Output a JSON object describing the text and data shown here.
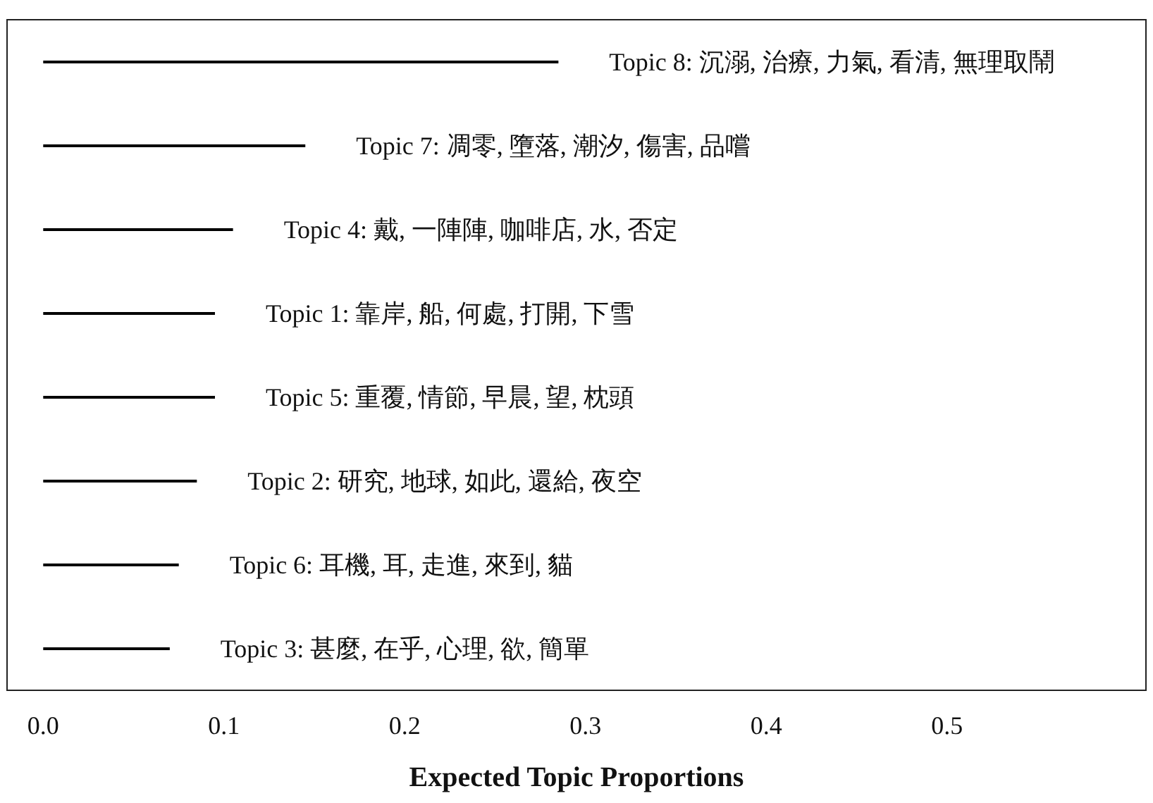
{
  "chart_data": {
    "type": "bar",
    "orientation": "horizontal",
    "categories": [
      "Topic 8: 沉溺, 治療, 力氣, 看清, 無理取鬧",
      "Topic 7: 凋零, 墮落, 潮汐, 傷害, 品嚐",
      "Topic 4: 戴, 一陣陣, 咖啡店, 水, 否定",
      "Topic 1: 靠岸, 船, 何處, 打開, 下雪",
      "Topic 5: 重覆, 情節, 早晨, 望, 枕頭",
      "Topic 2: 研究, 地球, 如此, 還給, 夜空",
      "Topic 6: 耳機, 耳, 走進, 來到, 貓",
      "Topic 3: 甚麼, 在乎, 心理, 欲, 簡單"
    ],
    "values": [
      0.285,
      0.145,
      0.105,
      0.095,
      0.095,
      0.085,
      0.075,
      0.07
    ],
    "color": "#000000",
    "xlim": [
      -0.02,
      0.61
    ],
    "xticks": [
      {
        "value": 0,
        "label": "0.0"
      },
      0.1,
      0.2,
      0.3,
      0.4,
      0.5
    ],
    "xlabel": "Expected Topic Proportions"
  }
}
